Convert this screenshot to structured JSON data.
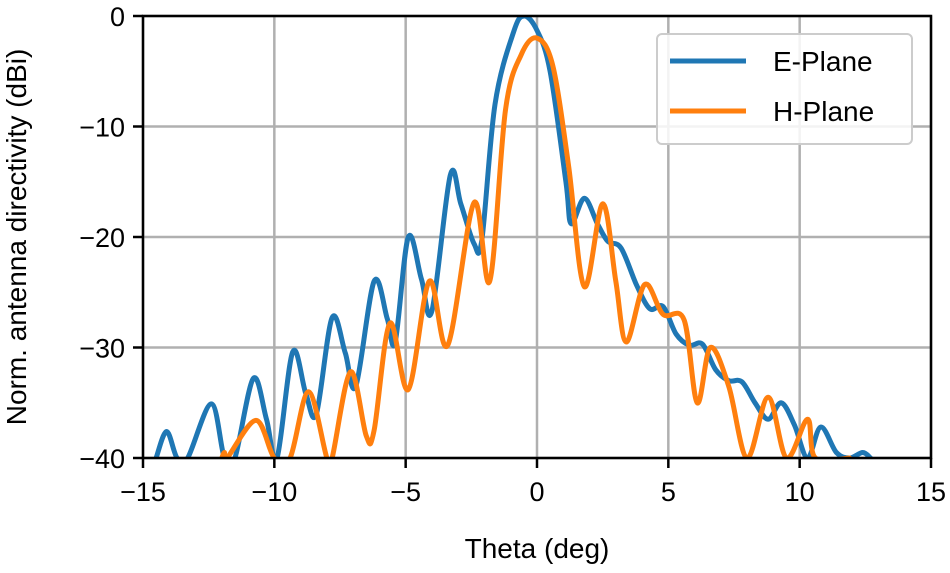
{
  "chart_data": {
    "type": "line",
    "title": "",
    "xlabel": "Theta (deg)",
    "ylabel": "Norm. antenna directivity (dBi)",
    "xlim": [
      -15,
      15
    ],
    "ylim": [
      -40,
      0
    ],
    "xticks": [
      -15,
      -10,
      -5,
      0,
      5,
      10,
      15
    ],
    "yticks": [
      0,
      -10,
      -20,
      -30,
      -40
    ],
    "xtick_labels": [
      "−15",
      "−10",
      "−5",
      "0",
      "5",
      "10",
      "15"
    ],
    "ytick_labels": [
      "0",
      "−10",
      "−20",
      "−30",
      "−40"
    ],
    "grid": true,
    "legend_position": "upper right",
    "series": [
      {
        "name": "E-Plane",
        "color": "#1f77b4",
        "x": [
          -14.5,
          -14.1,
          -13.7,
          -13.3,
          -12.4,
          -11.9,
          -11.5,
          -10.8,
          -10.3,
          -9.9,
          -9.3,
          -8.8,
          -8.4,
          -7.8,
          -7.3,
          -6.9,
          -6.2,
          -5.7,
          -5.4,
          -4.9,
          -4.4,
          -4.0,
          -3.3,
          -2.9,
          -2.4,
          -2.1,
          -1.6,
          -0.9,
          -0.5,
          0.0,
          0.5,
          1.1,
          1.3,
          1.8,
          2.3,
          2.7,
          3.2,
          3.8,
          4.3,
          4.8,
          5.3,
          5.8,
          6.3,
          6.8,
          7.3,
          7.8,
          8.3,
          8.8,
          9.3,
          9.8,
          10.3,
          10.8,
          11.4,
          11.9,
          12.4,
          12.7
        ],
        "values": [
          -40,
          -37.6,
          -40,
          -40,
          -35.1,
          -40,
          -40,
          -32.8,
          -36.5,
          -40,
          -30.4,
          -34.2,
          -36,
          -27.3,
          -30.5,
          -33.5,
          -24.0,
          -27.4,
          -29.5,
          -20.0,
          -23.8,
          -26.7,
          -14.4,
          -17.0,
          -20.6,
          -20.3,
          -8.0,
          -1.5,
          0.0,
          -1.3,
          -5.0,
          -15.0,
          -18.8,
          -16.5,
          -18.8,
          -20.4,
          -21.0,
          -24.4,
          -26.5,
          -26.3,
          -28.8,
          -29.8,
          -29.7,
          -32.0,
          -33.0,
          -33.1,
          -35.0,
          -36.5,
          -35.0,
          -37.0,
          -40.0,
          -37.2,
          -39.5,
          -40.0,
          -39.5,
          -40.0
        ]
      },
      {
        "name": "H-Plane",
        "color": "#ff7f0e",
        "x": [
          -12.0,
          -11.9,
          -11.8,
          -10.7,
          -10.0,
          -9.4,
          -8.7,
          -8.0,
          -7.8,
          -7.1,
          -6.5,
          -6.2,
          -5.6,
          -4.9,
          -4.1,
          -3.4,
          -2.4,
          -1.8,
          -1.2,
          -0.6,
          0.0,
          0.6,
          1.2,
          1.8,
          2.5,
          3.0,
          3.4,
          4.1,
          4.8,
          5.6,
          6.1,
          6.6,
          7.3,
          8.0,
          8.8,
          9.5,
          10.3,
          10.6,
          11.9
        ],
        "values": [
          -40,
          -39.5,
          -40,
          -36.6,
          -40,
          -40,
          -34.0,
          -40,
          -40,
          -32.2,
          -38.0,
          -37.5,
          -27.8,
          -33.8,
          -24.0,
          -29.8,
          -16.9,
          -24.0,
          -8.5,
          -3.5,
          -2.0,
          -4.5,
          -13.5,
          -24.5,
          -17.0,
          -24.0,
          -29.5,
          -24.3,
          -27.0,
          -27.5,
          -35.0,
          -30.0,
          -33.5,
          -40.0,
          -34.5,
          -40.0,
          -36.5,
          -40.0,
          -40.0
        ]
      }
    ]
  },
  "legend": {
    "items": [
      {
        "label": "E-Plane",
        "color": "#1f77b4"
      },
      {
        "label": "H-Plane",
        "color": "#ff7f0e"
      }
    ]
  },
  "axes": {
    "xlabel": "Theta (deg)",
    "ylabel": "Norm. antenna directivity (dBi)"
  }
}
